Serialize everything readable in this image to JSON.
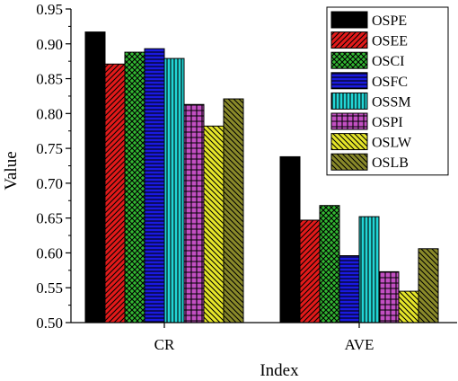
{
  "chart_data": {
    "type": "bar",
    "title": "",
    "xlabel": "Index",
    "ylabel": "Value",
    "ylim": [
      0.5,
      0.95
    ],
    "yticks": [
      "0.50",
      "0.55",
      "0.60",
      "0.65",
      "0.70",
      "0.75",
      "0.80",
      "0.85",
      "0.90",
      "0.95"
    ],
    "categories": [
      "CR",
      "AVE"
    ],
    "legend_position": "top-right",
    "grid": false,
    "series": [
      {
        "name": "OSPE",
        "values": [
          0.917,
          0.738
        ],
        "color": "#000000",
        "pattern": "solid"
      },
      {
        "name": "OSEE",
        "values": [
          0.871,
          0.647
        ],
        "color": "#e21a1a",
        "pattern": "diag-right"
      },
      {
        "name": "OSCI",
        "values": [
          0.888,
          0.668
        ],
        "color": "#33b733",
        "pattern": "crosshatch"
      },
      {
        "name": "OSFC",
        "values": [
          0.893,
          0.596
        ],
        "color": "#1a1ae0",
        "pattern": "horizontal"
      },
      {
        "name": "OSSM",
        "values": [
          0.879,
          0.652
        ],
        "color": "#22d6d6",
        "pattern": "vertical"
      },
      {
        "name": "OSPI",
        "values": [
          0.813,
          0.573
        ],
        "color": "#c24fc2",
        "pattern": "grid"
      },
      {
        "name": "OSLW",
        "values": [
          0.782,
          0.545
        ],
        "color": "#e6e62a",
        "pattern": "diag-left"
      },
      {
        "name": "OSLB",
        "values": [
          0.821,
          0.606
        ],
        "color": "#8a8a2a",
        "pattern": "diag-left"
      }
    ]
  }
}
